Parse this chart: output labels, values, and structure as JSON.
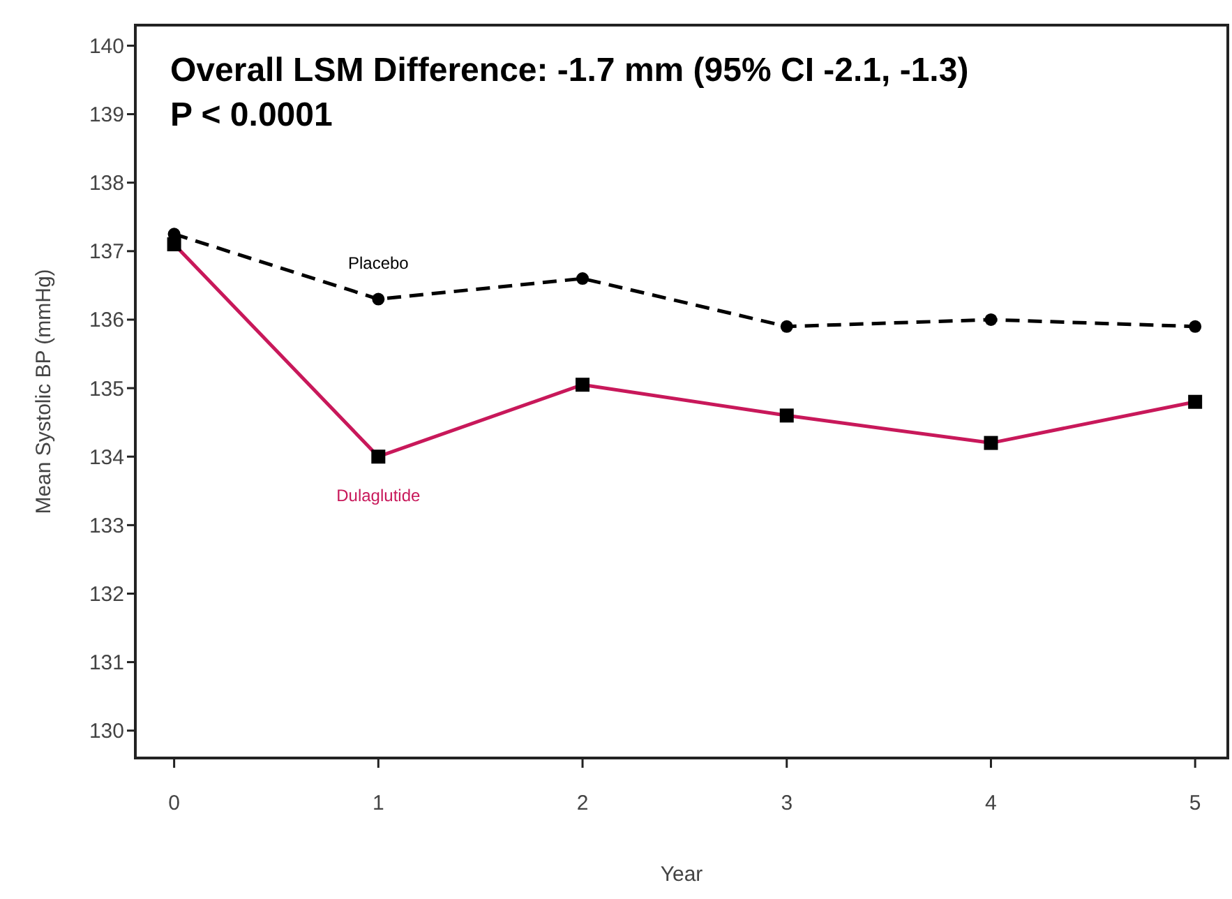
{
  "chart_data": {
    "type": "line",
    "xlabel": "Year",
    "ylabel": "Mean Systolic BP (mmHg)",
    "x": [
      0,
      1,
      2,
      3,
      4,
      5
    ],
    "series": [
      {
        "name": "Placebo",
        "color": "#000000",
        "line_style": "dashed",
        "marker": "circle",
        "values": [
          137.25,
          136.3,
          136.6,
          135.9,
          136.0,
          135.9
        ]
      },
      {
        "name": "Dulaglutide",
        "color": "#c8185a",
        "line_style": "solid",
        "marker": "square",
        "values": [
          137.1,
          134.0,
          135.05,
          134.6,
          134.2,
          134.8
        ]
      }
    ],
    "xlim": [
      -0.19,
      5.16
    ],
    "xticks": [
      0,
      1,
      2,
      3,
      4,
      5
    ],
    "ylim": [
      129.6,
      140.3
    ],
    "yticks": [
      130,
      131,
      132,
      133,
      134,
      135,
      136,
      137,
      138,
      139,
      140
    ],
    "grid": false,
    "annotations": [
      "Overall LSM Difference: -1.7 mm (95% CI -2.1, -1.3)",
      "P < 0.0001"
    ]
  }
}
